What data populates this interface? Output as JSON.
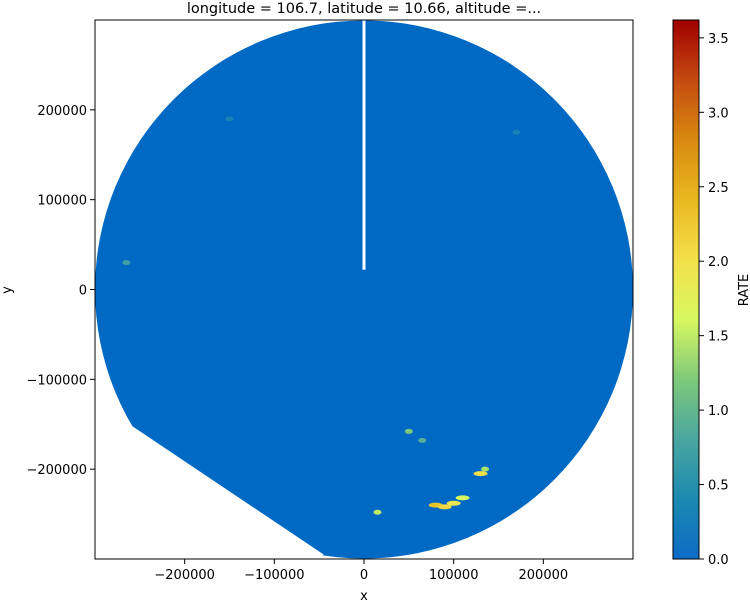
{
  "chart_data": {
    "type": "heatmap",
    "title": "longitude = 106.7, latitude = 10.66, altitude =...",
    "xlabel": "x",
    "ylabel": "y",
    "xlim": [
      -300000,
      300000
    ],
    "ylim": [
      -300000,
      300000
    ],
    "x_ticks": [
      -200000,
      -100000,
      0,
      100000,
      200000
    ],
    "x_tick_labels": [
      "−200000",
      "−100000",
      "0",
      "100000",
      "200000"
    ],
    "y_ticks": [
      200000,
      100000,
      0,
      -100000,
      -200000
    ],
    "y_tick_labels": [
      "200000",
      "100000",
      "0",
      "−100000",
      "−200000"
    ],
    "colorbar": {
      "label": "RATE",
      "range": [
        0.0,
        3.62
      ],
      "ticks": [
        0.0,
        0.5,
        1.0,
        1.5,
        2.0,
        2.5,
        3.0,
        3.5
      ],
      "tick_labels": [
        "0.0",
        "0.5",
        "1.0",
        "1.5",
        "2.0",
        "2.5",
        "3.0",
        "3.5"
      ],
      "colors": [
        "#0d6bc5",
        "#1a8ab0",
        "#4aa6a0",
        "#7ec97a",
        "#d8f860",
        "#f4e04a",
        "#e8b820",
        "#d88a10",
        "#c44a10",
        "#a00000"
      ]
    },
    "radar": {
      "max_range": 300000,
      "background_rate": 0.0,
      "background_color": "#0069c4",
      "sector_gap": {
        "azimuth_deg": 0,
        "from_range": 22000
      }
    },
    "cells": [
      {
        "x": 80000,
        "y": -240000,
        "rate": 2.3
      },
      {
        "x": 90000,
        "y": -242000,
        "rate": 2.1
      },
      {
        "x": 100000,
        "y": -238000,
        "rate": 1.9
      },
      {
        "x": 110000,
        "y": -232000,
        "rate": 1.6
      },
      {
        "x": 130000,
        "y": -205000,
        "rate": 2.0
      },
      {
        "x": 135000,
        "y": -200000,
        "rate": 1.4
      },
      {
        "x": 15000,
        "y": -248000,
        "rate": 1.5
      },
      {
        "x": 50000,
        "y": -158000,
        "rate": 1.2
      },
      {
        "x": 65000,
        "y": -168000,
        "rate": 0.9
      },
      {
        "x": -265000,
        "y": 30000,
        "rate": 0.7
      },
      {
        "x": -150000,
        "y": 190000,
        "rate": 0.3
      },
      {
        "x": 170000,
        "y": 175000,
        "rate": 0.3
      }
    ]
  }
}
